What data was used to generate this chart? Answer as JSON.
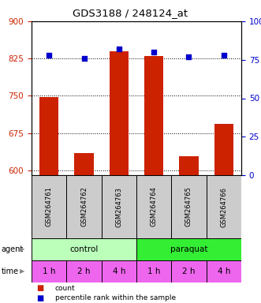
{
  "title": "GDS3188 / 248124_at",
  "samples": [
    "GSM264761",
    "GSM264762",
    "GSM264763",
    "GSM264764",
    "GSM264765",
    "GSM264766"
  ],
  "counts": [
    748,
    635,
    840,
    830,
    628,
    693
  ],
  "percentiles": [
    78,
    76,
    82,
    80,
    77,
    78
  ],
  "ylim_left": [
    590,
    900
  ],
  "ylim_right": [
    0,
    100
  ],
  "yticks_left": [
    600,
    675,
    750,
    825,
    900
  ],
  "yticks_right": [
    0,
    25,
    50,
    75,
    100
  ],
  "bar_color": "#cc2200",
  "dot_color": "#0000cc",
  "control_color": "#bbffbb",
  "paraquat_color": "#33ee33",
  "time_color": "#ee66ee",
  "time_labels": [
    "1 h",
    "2 h",
    "4 h",
    "1 h",
    "2 h",
    "4 h"
  ],
  "agent_labels": [
    "control",
    "paraquat"
  ],
  "sample_bg": "#cccccc",
  "bar_width": 0.55
}
